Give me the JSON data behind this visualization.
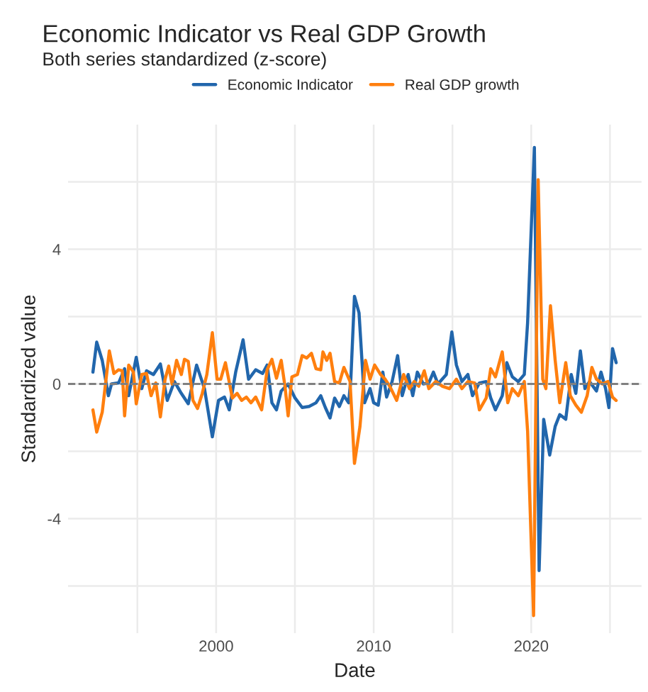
{
  "chart_data": {
    "type": "line",
    "title": "Economic Indicator vs Real GDP Growth",
    "subtitle": "Both series standardized (z-score)",
    "xlabel": "Date",
    "ylabel": "Standardized value",
    "xlim": [
      1990.6,
      2027.0
    ],
    "ylim": [
      -7.4,
      7.7
    ],
    "xticks": [
      {
        "value": 1995,
        "label": null
      },
      2000,
      {
        "value": 2005,
        "label": null
      },
      2010,
      {
        "value": 2015,
        "label": null
      },
      2020,
      {
        "value": 2025,
        "label": null
      }
    ],
    "yticks": [
      {
        "value": -6,
        "label": null
      },
      -4,
      {
        "value": -2,
        "label": null
      },
      0,
      {
        "value": 2,
        "label": null
      },
      4,
      {
        "value": 6,
        "label": null
      }
    ],
    "grid": true,
    "legend": "top",
    "line_style": "solid",
    "marker": "none",
    "ref_lines": [
      {
        "axis": "y",
        "value": 0,
        "color": "#808080",
        "line_style": "dashed"
      }
    ],
    "series": [
      {
        "name": "Economic Indicator",
        "color": "#2166ac",
        "x": [
          1992.18,
          1992.42,
          1992.77,
          1993.16,
          1993.36,
          1993.81,
          1994.19,
          1994.45,
          1994.93,
          1995.28,
          1995.58,
          1996.02,
          1996.46,
          1996.9,
          1997.35,
          1997.79,
          1998.23,
          1998.76,
          1999.26,
          1999.76,
          2000.15,
          2000.53,
          2000.83,
          2001.24,
          2001.71,
          2002.06,
          2002.51,
          2002.95,
          2003.24,
          2003.54,
          2003.83,
          2004.13,
          2004.57,
          2005.01,
          2005.46,
          2005.9,
          2006.34,
          2006.64,
          2006.93,
          2007.23,
          2007.52,
          2007.82,
          2008.11,
          2008.41,
          2008.55,
          2008.78,
          2009.07,
          2009.42,
          2009.77,
          2010.0,
          2010.29,
          2010.58,
          2010.82,
          2011.17,
          2011.52,
          2011.81,
          2012.19,
          2012.48,
          2012.77,
          2013.15,
          2013.5,
          2013.79,
          2014.08,
          2014.61,
          2014.96,
          2015.25,
          2015.6,
          2015.98,
          2016.27,
          2016.71,
          2017.14,
          2017.43,
          2017.73,
          2018.16,
          2018.45,
          2018.8,
          2019.18,
          2019.56,
          2019.77,
          2020.2,
          2020.5,
          2020.79,
          2021.17,
          2021.52,
          2021.81,
          2022.19,
          2022.54,
          2022.83,
          2023.12,
          2023.41,
          2023.7,
          2024.14,
          2024.43,
          2024.72,
          2024.93,
          2025.16,
          2025.39
        ],
        "values": [
          0.35,
          1.24,
          0.7,
          -0.35,
          0.0,
          0.03,
          0.45,
          -0.35,
          0.79,
          -0.14,
          0.39,
          0.28,
          0.59,
          -0.49,
          0.07,
          -0.28,
          -0.59,
          0.56,
          -0.14,
          -1.57,
          -0.49,
          -0.39,
          -0.77,
          0.35,
          1.31,
          0.14,
          0.42,
          0.31,
          0.56,
          -0.56,
          -0.77,
          -0.21,
          0.0,
          -0.42,
          -0.7,
          -0.67,
          -0.56,
          -0.35,
          -0.7,
          -1.01,
          -0.42,
          -0.67,
          -0.35,
          -0.56,
          0.14,
          2.6,
          2.11,
          -0.56,
          -0.14,
          -0.56,
          -0.63,
          0.35,
          -0.39,
          0.07,
          0.84,
          -0.35,
          0.28,
          -0.35,
          0.35,
          0.0,
          0.03,
          0.35,
          0.0,
          0.28,
          1.54,
          0.56,
          0.07,
          0.28,
          -0.35,
          0.03,
          0.07,
          -0.42,
          -0.77,
          -0.35,
          0.63,
          0.21,
          0.07,
          0.28,
          1.82,
          7.02,
          -5.54,
          -1.05,
          -2.11,
          -1.26,
          -0.91,
          -1.05,
          0.28,
          -0.28,
          0.98,
          -0.14,
          0.07,
          -0.21,
          0.35,
          -0.14,
          -0.7,
          1.05,
          0.63
        ]
      },
      {
        "name": "Real GDP growth",
        "color": "#ff7f0e",
        "x": [
          1992.18,
          1992.42,
          1992.77,
          1993.22,
          1993.51,
          1993.81,
          1994.04,
          1994.19,
          1994.45,
          1994.75,
          1994.93,
          1995.28,
          1995.58,
          1995.87,
          1996.17,
          1996.46,
          1996.76,
          1996.99,
          1997.2,
          1997.49,
          1997.79,
          1997.99,
          1998.23,
          1998.53,
          1998.82,
          1999.12,
          1999.41,
          1999.76,
          2000.06,
          2000.29,
          2000.59,
          2001.03,
          2001.33,
          2001.62,
          2001.92,
          2002.21,
          2002.51,
          2002.89,
          2003.24,
          2003.54,
          2003.83,
          2004.13,
          2004.37,
          2004.57,
          2004.81,
          2005.16,
          2005.46,
          2005.75,
          2006.05,
          2006.34,
          2006.64,
          2006.78,
          2007.02,
          2007.23,
          2007.52,
          2007.82,
          2008.11,
          2008.5,
          2008.78,
          2009.13,
          2009.48,
          2009.77,
          2010.06,
          2010.44,
          2010.73,
          2011.02,
          2011.46,
          2011.9,
          2012.27,
          2012.57,
          2012.86,
          2013.21,
          2013.5,
          2013.94,
          2014.37,
          2014.81,
          2015.25,
          2015.6,
          2015.98,
          2016.41,
          2016.71,
          2017.14,
          2017.43,
          2017.73,
          2018.16,
          2018.51,
          2018.8,
          2019.18,
          2019.56,
          2019.77,
          2020.15,
          2020.44,
          2020.73,
          2020.93,
          2021.22,
          2021.52,
          2021.81,
          2022.19,
          2022.48,
          2022.83,
          2023.18,
          2023.55,
          2023.85,
          2024.14,
          2024.52,
          2024.87,
          2025.16,
          2025.39
        ],
        "values": [
          -0.77,
          -1.43,
          -0.84,
          0.98,
          0.31,
          0.42,
          0.39,
          -0.95,
          0.56,
          0.35,
          -0.59,
          0.28,
          0.31,
          -0.35,
          0.03,
          -0.98,
          0.14,
          0.53,
          0.0,
          0.7,
          0.28,
          0.73,
          0.67,
          -0.49,
          -0.73,
          -0.28,
          0.28,
          1.52,
          0.14,
          0.14,
          0.63,
          -0.42,
          -0.28,
          -0.49,
          -0.39,
          -0.56,
          -0.39,
          -0.77,
          0.42,
          0.73,
          0.17,
          0.7,
          -0.07,
          -0.95,
          0.21,
          0.28,
          0.84,
          0.77,
          0.91,
          0.45,
          0.42,
          0.95,
          0.7,
          0.91,
          0.07,
          0.03,
          0.49,
          0.07,
          -2.36,
          -1.26,
          0.7,
          0.14,
          0.56,
          0.28,
          0.14,
          -0.07,
          -0.49,
          0.28,
          -0.14,
          0.07,
          -0.07,
          0.39,
          -0.14,
          0.07,
          -0.07,
          -0.14,
          0.14,
          -0.14,
          0.07,
          0.03,
          -0.77,
          -0.42,
          0.45,
          0.21,
          0.95,
          -0.56,
          -0.14,
          -0.35,
          0.07,
          -1.4,
          -6.88,
          6.06,
          0.14,
          -0.14,
          2.32,
          0.7,
          -0.56,
          0.63,
          -0.35,
          -0.63,
          -0.84,
          -0.35,
          0.49,
          0.14,
          0.0,
          0.07,
          -0.39,
          -0.49
        ]
      }
    ]
  }
}
